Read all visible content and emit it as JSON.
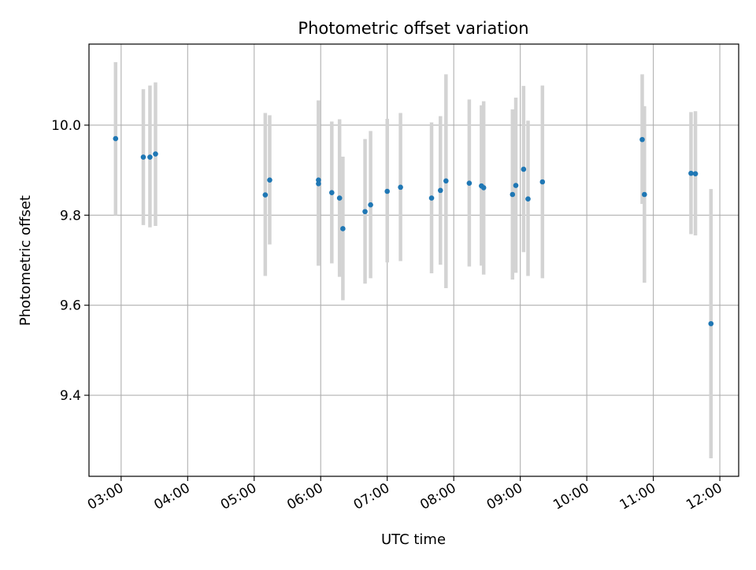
{
  "chart_data": {
    "type": "scatter",
    "title": "Photometric offset variation",
    "xlabel": "UTC time",
    "ylabel": "Photometric offset",
    "grid": true,
    "x_tick_labels": [
      "03:00",
      "04:00",
      "05:00",
      "06:00",
      "07:00",
      "08:00",
      "09:00",
      "10:00",
      "11:00",
      "12:00"
    ],
    "y_tick_labels": [
      "9.4",
      "9.6",
      "9.8",
      "10.0"
    ],
    "y_ticks": [
      9.4,
      9.6,
      9.8,
      10.0
    ],
    "xlim": [
      "02:31",
      "12:17"
    ],
    "ylim": [
      9.22,
      10.18
    ],
    "marker_color": "#1f77b4",
    "errorbar_color": "#d3d3d3",
    "points": [
      {
        "x": "02:55",
        "y": 9.97,
        "yerr_low": 9.8,
        "yerr_high": 10.14
      },
      {
        "x": "03:20",
        "y": 9.929,
        "yerr_low": 9.778,
        "yerr_high": 10.08
      },
      {
        "x": "03:26",
        "y": 9.929,
        "yerr_low": 9.773,
        "yerr_high": 10.088
      },
      {
        "x": "03:31",
        "y": 9.936,
        "yerr_low": 9.776,
        "yerr_high": 10.095
      },
      {
        "x": "05:10",
        "y": 9.845,
        "yerr_low": 9.665,
        "yerr_high": 10.027
      },
      {
        "x": "05:14",
        "y": 9.878,
        "yerr_low": 9.735,
        "yerr_high": 10.022
      },
      {
        "x": "05:58",
        "y": 9.878,
        "yerr_low": 9.688,
        "yerr_high": 10.055
      },
      {
        "x": "05:58",
        "y": 9.87,
        "yerr_low": 9.688,
        "yerr_high": 10.055
      },
      {
        "x": "06:10",
        "y": 9.85,
        "yerr_low": 9.693,
        "yerr_high": 10.008
      },
      {
        "x": "06:17",
        "y": 9.838,
        "yerr_low": 9.663,
        "yerr_high": 10.013
      },
      {
        "x": "06:20",
        "y": 9.77,
        "yerr_low": 9.611,
        "yerr_high": 9.93
      },
      {
        "x": "06:40",
        "y": 9.808,
        "yerr_low": 9.648,
        "yerr_high": 9.969
      },
      {
        "x": "06:45",
        "y": 9.823,
        "yerr_low": 9.66,
        "yerr_high": 9.987
      },
      {
        "x": "07:00",
        "y": 9.853,
        "yerr_low": 9.695,
        "yerr_high": 10.014
      },
      {
        "x": "07:12",
        "y": 9.862,
        "yerr_low": 9.698,
        "yerr_high": 10.027
      },
      {
        "x": "07:40",
        "y": 9.838,
        "yerr_low": 9.671,
        "yerr_high": 10.006
      },
      {
        "x": "07:48",
        "y": 9.855,
        "yerr_low": 9.69,
        "yerr_high": 10.02
      },
      {
        "x": "07:53",
        "y": 9.876,
        "yerr_low": 9.638,
        "yerr_high": 10.113
      },
      {
        "x": "08:14",
        "y": 9.871,
        "yerr_low": 9.686,
        "yerr_high": 10.057
      },
      {
        "x": "08:25",
        "y": 9.865,
        "yerr_low": 9.688,
        "yerr_high": 10.044
      },
      {
        "x": "08:27",
        "y": 9.861,
        "yerr_low": 9.668,
        "yerr_high": 10.053
      },
      {
        "x": "08:53",
        "y": 9.846,
        "yerr_low": 9.657,
        "yerr_high": 10.035
      },
      {
        "x": "08:56",
        "y": 9.866,
        "yerr_low": 9.672,
        "yerr_high": 10.061
      },
      {
        "x": "09:03",
        "y": 9.902,
        "yerr_low": 9.718,
        "yerr_high": 10.087
      },
      {
        "x": "09:07",
        "y": 9.836,
        "yerr_low": 9.665,
        "yerr_high": 10.01
      },
      {
        "x": "09:20",
        "y": 9.874,
        "yerr_low": 9.66,
        "yerr_high": 10.088
      },
      {
        "x": "10:50",
        "y": 9.968,
        "yerr_low": 9.825,
        "yerr_high": 10.113
      },
      {
        "x": "10:52",
        "y": 9.846,
        "yerr_low": 9.65,
        "yerr_high": 10.042
      },
      {
        "x": "11:34",
        "y": 9.893,
        "yerr_low": 9.758,
        "yerr_high": 10.029
      },
      {
        "x": "11:38",
        "y": 9.892,
        "yerr_low": 9.755,
        "yerr_high": 10.031
      },
      {
        "x": "11:52",
        "y": 9.559,
        "yerr_low": 9.26,
        "yerr_high": 9.858
      }
    ]
  }
}
